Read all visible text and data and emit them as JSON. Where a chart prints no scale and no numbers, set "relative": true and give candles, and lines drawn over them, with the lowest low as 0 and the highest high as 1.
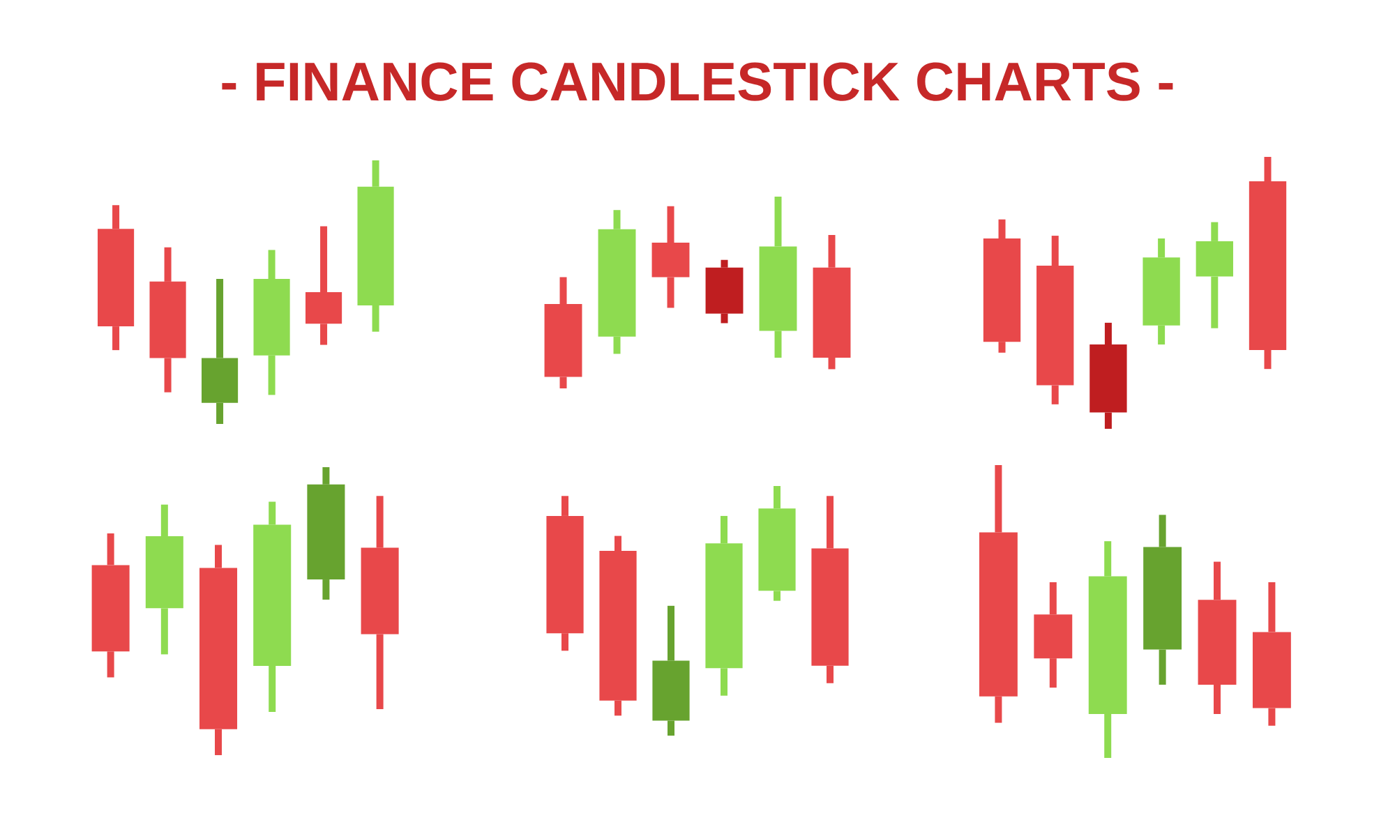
{
  "chart_data": [
    {
      "type": "candlestick",
      "title": "- FINANCE CANDLESTICK CHARTS -",
      "relative": true,
      "categories": [
        null,
        null,
        null,
        null,
        null,
        null
      ],
      "ohlc": [
        [
          0.74,
          0.83,
          0.28,
          0.37
        ],
        [
          0.54,
          0.67,
          0.12,
          0.25
        ],
        [
          0.08,
          0.55,
          0,
          0.25
        ],
        [
          0.26,
          0.66,
          0.11,
          0.55
        ],
        [
          0.5,
          0.75,
          0.3,
          0.38
        ],
        [
          0.45,
          1,
          0.35,
          0.9
        ]
      ],
      "colors": [
        "#e8484a",
        "#e8484a",
        "#67a32f",
        "#8edb50",
        "#e8484a",
        "#8edb50"
      ]
    },
    {
      "type": "candlestick",
      "relative": true,
      "categories": [
        null,
        null,
        null,
        null,
        null,
        null
      ],
      "ohlc": [
        [
          0.44,
          0.58,
          0,
          0.06
        ],
        [
          0.27,
          0.93,
          0.18,
          0.83
        ],
        [
          0.76,
          0.95,
          0.42,
          0.58
        ],
        [
          0.63,
          0.67,
          0.34,
          0.39
        ],
        [
          0.3,
          1,
          0.16,
          0.74
        ],
        [
          0.63,
          0.8,
          0.1,
          0.16
        ]
      ],
      "colors": [
        "#e8484a",
        "#8edb50",
        "#e8484a",
        "#bf1e20",
        "#8edb50",
        "#e8484a"
      ]
    },
    {
      "type": "candlestick",
      "relative": true,
      "categories": [
        null,
        null,
        null,
        null,
        null,
        null
      ],
      "ohlc": [
        [
          0.7,
          0.77,
          0.28,
          0.32
        ],
        [
          0.6,
          0.71,
          0.09,
          0.16
        ],
        [
          0.31,
          0.39,
          0,
          0.06
        ],
        [
          0.38,
          0.7,
          0.31,
          0.63
        ],
        [
          0.56,
          0.76,
          0.37,
          0.69
        ],
        [
          0.91,
          1,
          0.22,
          0.29
        ]
      ],
      "colors": [
        "#e8484a",
        "#e8484a",
        "#bf1e20",
        "#8edb50",
        "#8edb50",
        "#e8484a"
      ]
    },
    {
      "type": "candlestick",
      "relative": true,
      "categories": [
        null,
        null,
        null,
        null,
        null,
        null
      ],
      "ohlc": [
        [
          0.66,
          0.77,
          0.27,
          0.36
        ],
        [
          0.51,
          0.87,
          0.35,
          0.76
        ],
        [
          0.65,
          0.73,
          0,
          0.09
        ],
        [
          0.31,
          0.88,
          0.15,
          0.8
        ],
        [
          0.61,
          1,
          0.54,
          0.94
        ],
        [
          0.72,
          0.9,
          0.16,
          0.42
        ]
      ],
      "colors": [
        "#e8484a",
        "#8edb50",
        "#e8484a",
        "#8edb50",
        "#67a32f",
        "#e8484a"
      ]
    },
    {
      "type": "candlestick",
      "relative": true,
      "categories": [
        null,
        null,
        null,
        null,
        null,
        null
      ],
      "ohlc": [
        [
          0.88,
          0.96,
          0.34,
          0.41
        ],
        [
          0.74,
          0.8,
          0.08,
          0.14
        ],
        [
          0.06,
          0.52,
          0,
          0.3
        ],
        [
          0.27,
          0.88,
          0.16,
          0.77
        ],
        [
          0.58,
          1,
          0.54,
          0.91
        ],
        [
          0.75,
          0.96,
          0.21,
          0.28
        ]
      ],
      "colors": [
        "#e8484a",
        "#e8484a",
        "#67a32f",
        "#8edb50",
        "#8edb50",
        "#e8484a"
      ]
    },
    {
      "type": "candlestick",
      "relative": true,
      "categories": [
        null,
        null,
        null,
        null,
        null,
        null
      ],
      "ohlc": [
        [
          0.77,
          1,
          0.12,
          0.21
        ],
        [
          0.49,
          0.6,
          0.24,
          0.34
        ],
        [
          0.15,
          0.74,
          0,
          0.62
        ],
        [
          0.37,
          0.83,
          0.25,
          0.72
        ],
        [
          0.54,
          0.67,
          0.15,
          0.25
        ],
        [
          0.43,
          0.6,
          0.11,
          0.17
        ]
      ],
      "colors": [
        "#e8484a",
        "#e8484a",
        "#8edb50",
        "#67a32f",
        "#e8484a",
        "#e8484a"
      ]
    }
  ]
}
